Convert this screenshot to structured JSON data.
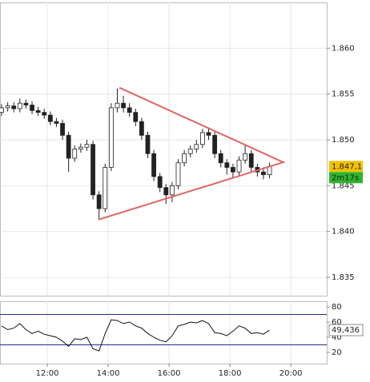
{
  "chart_data": {
    "type": "candlestick",
    "x": [
      10.5,
      10.7,
      10.9,
      11.1,
      11.3,
      11.5,
      11.7,
      11.9,
      12.1,
      12.3,
      12.5,
      12.7,
      12.9,
      13.1,
      13.3,
      13.5,
      13.7,
      13.9,
      14.1,
      14.3,
      14.5,
      14.7,
      14.9,
      15.1,
      15.3,
      15.5,
      15.7,
      15.9,
      16.1,
      16.3,
      16.5,
      16.7,
      16.9,
      17.1,
      17.3,
      17.5,
      17.7,
      17.9,
      18.1,
      18.3,
      18.5,
      18.7,
      18.9,
      19.1,
      19.3
    ],
    "open": [
      1.853,
      1.8535,
      1.8537,
      1.8534,
      1.854,
      1.8538,
      1.8532,
      1.853,
      1.8527,
      1.852,
      1.8518,
      1.8505,
      1.848,
      1.849,
      1.8492,
      1.8495,
      1.844,
      1.8425,
      1.847,
      1.8535,
      1.854,
      1.8535,
      1.853,
      1.852,
      1.8505,
      1.8485,
      1.846,
      1.8448,
      1.844,
      1.845,
      1.8475,
      1.8485,
      1.849,
      1.8495,
      1.8508,
      1.8505,
      1.8485,
      1.8475,
      1.847,
      1.8465,
      1.8478,
      1.8485,
      1.847,
      1.8465,
      1.8462
    ],
    "high": [
      1.8539,
      1.8541,
      1.8541,
      1.8545,
      1.8544,
      1.8542,
      1.8536,
      1.8534,
      1.8531,
      1.8524,
      1.8522,
      1.8509,
      1.8494,
      1.8496,
      1.85,
      1.8499,
      1.8444,
      1.8474,
      1.854,
      1.8556,
      1.8548,
      1.854,
      1.8534,
      1.8524,
      1.8509,
      1.8489,
      1.8464,
      1.8452,
      1.8454,
      1.8479,
      1.8489,
      1.8494,
      1.85,
      1.8512,
      1.8513,
      1.8509,
      1.8489,
      1.8479,
      1.8474,
      1.8482,
      1.8495,
      1.8489,
      1.8474,
      1.847,
      1.8475
    ],
    "low": [
      1.8526,
      1.8531,
      1.853,
      1.853,
      1.8534,
      1.8528,
      1.8526,
      1.8523,
      1.8516,
      1.8514,
      1.85,
      1.8465,
      1.8476,
      1.8486,
      1.8488,
      1.8435,
      1.8414,
      1.8421,
      1.8466,
      1.853,
      1.853,
      1.8525,
      1.8515,
      1.85,
      1.848,
      1.8455,
      1.8443,
      1.843,
      1.8432,
      1.8446,
      1.8471,
      1.8481,
      1.8486,
      1.8491,
      1.85,
      1.848,
      1.847,
      1.8462,
      1.8458,
      1.8461,
      1.8474,
      1.8465,
      1.846,
      1.8457,
      1.8458
    ],
    "close": [
      1.8535,
      1.8537,
      1.8534,
      1.854,
      1.8538,
      1.8532,
      1.853,
      1.8527,
      1.852,
      1.8518,
      1.8505,
      1.848,
      1.849,
      1.8492,
      1.8495,
      1.844,
      1.8425,
      1.847,
      1.8535,
      1.854,
      1.8535,
      1.853,
      1.852,
      1.8505,
      1.8485,
      1.846,
      1.8448,
      1.844,
      1.845,
      1.8475,
      1.8485,
      1.849,
      1.8495,
      1.8508,
      1.8505,
      1.8485,
      1.8475,
      1.847,
      1.8465,
      1.8478,
      1.8485,
      1.847,
      1.8465,
      1.8462,
      1.8471
    ],
    "xlim": [
      10.447,
      21.18
    ],
    "xticks": [
      {
        "value": 12,
        "label": "12:00"
      },
      {
        "value": 14,
        "label": "14:00"
      },
      {
        "value": 16,
        "label": "16:00"
      },
      {
        "value": 18,
        "label": "18:00"
      },
      {
        "value": 20,
        "label": "20:00"
      }
    ],
    "ylim": [
      1.833,
      1.865
    ],
    "yticks": [
      {
        "value": 1.835,
        "label": "1.835"
      },
      {
        "value": 1.84,
        "label": "1.840"
      },
      {
        "value": 1.845,
        "label": "1.845"
      },
      {
        "value": 1.85,
        "label": "1.850"
      },
      {
        "value": 1.855,
        "label": "1.855"
      },
      {
        "value": 1.86,
        "label": "1.860"
      }
    ],
    "grid": true,
    "trendline_color": "#e06666",
    "trendlines": [
      {
        "x": [
          14.37,
          19.79
        ],
        "y": [
          1.8557,
          1.8475
        ]
      },
      {
        "x": [
          13.68,
          19.79
        ],
        "y": [
          1.8413,
          1.8476
        ]
      }
    ],
    "last_price": {
      "value": 1.8471,
      "label": "1.847,1"
    },
    "countdown": "2m17s",
    "indicator": {
      "type": "line",
      "color": "#111",
      "values": [
        55,
        50,
        52,
        58,
        50,
        45,
        48,
        44,
        42,
        40,
        35,
        28,
        38,
        37,
        40,
        25,
        22,
        45,
        63,
        62,
        58,
        60,
        55,
        52,
        45,
        40,
        36,
        34,
        42,
        55,
        57,
        60,
        59,
        62,
        58,
        46,
        45,
        42,
        48,
        55,
        52,
        45,
        46,
        44,
        49.436
      ],
      "ylim": [
        5.3,
        87.4
      ],
      "yticks": [
        20,
        40,
        60,
        80
      ],
      "levels": [
        30,
        70
      ],
      "level_color": "#1f2d8a",
      "last": {
        "value": 49.436,
        "label": "49,436"
      }
    }
  }
}
